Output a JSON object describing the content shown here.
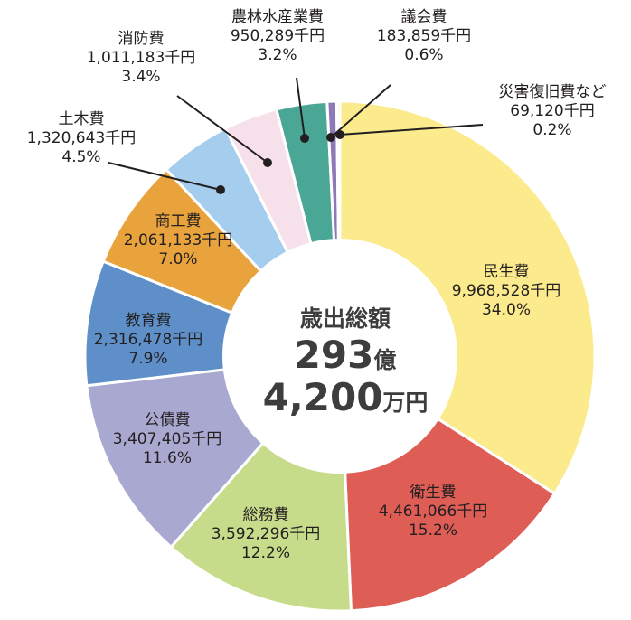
{
  "chart_data": {
    "type": "pie",
    "donut": true,
    "title": "",
    "center_text": {
      "line1": "歳出総額",
      "line2_num": "293",
      "line2_unit": "億",
      "line3_num": "4,200",
      "line3_unit": "万円"
    },
    "slices": [
      {
        "name": "民生費",
        "amount": "9,968,528千円",
        "percent": "34.0%",
        "value": 34.0,
        "color": "#fbeb8c"
      },
      {
        "name": "衛生費",
        "amount": "4,461,066千円",
        "percent": "15.2%",
        "value": 15.2,
        "color": "#de5e56"
      },
      {
        "name": "総務費",
        "amount": "3,592,296千円",
        "percent": "12.2%",
        "value": 12.2,
        "color": "#c6dc8a"
      },
      {
        "name": "公債費",
        "amount": "3,407,405千円",
        "percent": "11.6%",
        "value": 11.6,
        "color": "#a9a8d0"
      },
      {
        "name": "教育費",
        "amount": "2,316,478千円",
        "percent": "7.9%",
        "value": 7.9,
        "color": "#5e8fc8"
      },
      {
        "name": "商工費",
        "amount": "2,061,133千円",
        "percent": "7.0%",
        "value": 7.0,
        "color": "#e8a33d"
      },
      {
        "name": "土木費",
        "amount": "1,320,643千円",
        "percent": "4.5%",
        "value": 4.5,
        "color": "#a5cdee"
      },
      {
        "name": "消防費",
        "amount": "1,011,183千円",
        "percent": "3.4%",
        "value": 3.4,
        "color": "#f6e0ea"
      },
      {
        "name": "農林水産業費",
        "amount": "950,289千円",
        "percent": "3.2%",
        "value": 3.2,
        "color": "#4aa695"
      },
      {
        "name": "議会費",
        "amount": "183,859千円",
        "percent": "0.6%",
        "value": 0.6,
        "color": "#8d79b8"
      },
      {
        "name": "災害復旧費など",
        "amount": "69,120千円",
        "percent": "0.2%",
        "value": 0.2,
        "color": "#f4ecc0"
      }
    ]
  }
}
